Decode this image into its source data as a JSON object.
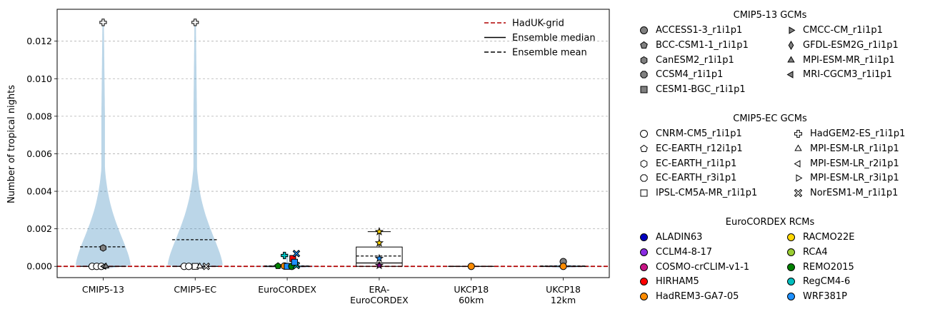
{
  "chart_data": {
    "type": "violin",
    "ylabel": "Number of tropical nights",
    "xlabel": "",
    "ylim": [
      -0.0006,
      0.0137
    ],
    "yticks": [
      0.0,
      0.002,
      0.004,
      0.006,
      0.008,
      0.01,
      0.012
    ],
    "ytick_labels": [
      "0.000",
      "0.002",
      "0.004",
      "0.006",
      "0.008",
      "0.010",
      "0.012"
    ],
    "grid": "y, dashed",
    "categories": [
      {
        "label_lines": [
          "CMIP5-13"
        ],
        "mean": 0.00104,
        "median": 0.0,
        "max": 0.013,
        "violin": true
      },
      {
        "label_lines": [
          "CMIP5-EC"
        ],
        "mean": 0.00142,
        "median": 0.0,
        "max": 0.013,
        "violin": true
      },
      {
        "label_lines": [
          "EuroCORDEX"
        ],
        "mean": 2e-05,
        "median": 0.0,
        "max": 0.0007,
        "violin": true
      },
      {
        "label_lines": [
          "ERA-",
          "EuroCORDEX"
        ],
        "mean": 0.00055,
        "median": 0.00018,
        "max": 0.0018,
        "violin": false,
        "box": {
          "q1": 0.0,
          "q3": 0.00103,
          "whisker_low": 0.0,
          "whisker_high": 0.00185
        }
      },
      {
        "label_lines": [
          "UKCP18",
          "60km"
        ],
        "mean": 0.0,
        "median": 0.0,
        "max": 0.0,
        "violin": true
      },
      {
        "label_lines": [
          "UKCP18",
          "12km"
        ],
        "mean": 2e-05,
        "median": 0.0,
        "max": 0.0003,
        "violin": true
      }
    ],
    "reference_line": {
      "name": "HadUK-grid",
      "value": 0.0,
      "color": "#b00000"
    },
    "points": [
      {
        "cat": 0,
        "dx": -0.12,
        "y": 0.0,
        "marker": "circle",
        "fill": "#ffffff"
      },
      {
        "cat": 0,
        "dx": -0.07,
        "y": 0.0,
        "marker": "circle",
        "fill": "#ffffff"
      },
      {
        "cat": 0,
        "dx": -0.02,
        "y": 0.0,
        "marker": "circle",
        "fill": "#ffffff"
      },
      {
        "cat": 0,
        "dx": 0.01,
        "y": 0.0,
        "marker": "triangle-left",
        "fill": "#808080"
      },
      {
        "cat": 0,
        "dx": 0.03,
        "y": 0.0,
        "marker": "triangle-up",
        "fill": "#808080"
      },
      {
        "cat": 0,
        "dx": 0.0,
        "y": 0.00098,
        "marker": "hexagon",
        "fill": "#808080"
      },
      {
        "cat": 0,
        "dx": 0.0,
        "y": 0.013,
        "marker": "plus",
        "fill": "#ffffff"
      },
      {
        "cat": 1,
        "dx": -0.12,
        "y": 0.0,
        "marker": "circle",
        "fill": "#ffffff"
      },
      {
        "cat": 1,
        "dx": -0.07,
        "y": 0.0,
        "marker": "circle",
        "fill": "#ffffff"
      },
      {
        "cat": 1,
        "dx": 0.0,
        "y": 0.0,
        "marker": "square",
        "fill": "#ffffff"
      },
      {
        "cat": 1,
        "dx": 0.05,
        "y": 0.0,
        "marker": "triangle-up",
        "fill": "#ffffff"
      },
      {
        "cat": 1,
        "dx": 0.12,
        "y": 0.0,
        "marker": "x",
        "fill": "#ffffff"
      },
      {
        "cat": 1,
        "dx": 0.0,
        "y": 0.013,
        "marker": "plus",
        "fill": "#ffffff"
      },
      {
        "cat": 2,
        "dx": -0.1,
        "y": 2e-05,
        "marker": "pentagon",
        "fill": "#008000"
      },
      {
        "cat": 2,
        "dx": -0.03,
        "y": 2e-05,
        "marker": "circle",
        "fill": "#ff8c00"
      },
      {
        "cat": 2,
        "dx": 0.0,
        "y": 0.0,
        "marker": "square",
        "fill": "#1e90ff"
      },
      {
        "cat": 2,
        "dx": 0.05,
        "y": 0.0,
        "marker": "circle",
        "fill": "#008000"
      },
      {
        "cat": 2,
        "dx": 0.1,
        "y": 5e-05,
        "marker": "x",
        "fill": "#00bfbf"
      },
      {
        "cat": 2,
        "dx": -0.03,
        "y": 0.00058,
        "marker": "plus",
        "fill": "#00bfbf"
      },
      {
        "cat": 2,
        "dx": 0.06,
        "y": 0.00042,
        "marker": "square",
        "fill": "#ff0000"
      },
      {
        "cat": 2,
        "dx": 0.1,
        "y": 0.00068,
        "marker": "x",
        "fill": "#1e90ff"
      },
      {
        "cat": 2,
        "dx": 0.08,
        "y": 0.00022,
        "marker": "square",
        "fill": "#1e90ff"
      },
      {
        "cat": 3,
        "dx": 0.0,
        "y": 0.00185,
        "marker": "star",
        "fill": "#ffd700"
      },
      {
        "cat": 3,
        "dx": 0.0,
        "y": 0.00125,
        "marker": "star",
        "fill": "#ffd700"
      },
      {
        "cat": 3,
        "dx": 0.0,
        "y": 0.00042,
        "marker": "star",
        "fill": "#1e90ff"
      },
      {
        "cat": 3,
        "dx": 0.0,
        "y": 5e-05,
        "marker": "star",
        "fill": "#800080"
      },
      {
        "cat": 4,
        "dx": 0.0,
        "y": 0.0,
        "marker": "circle",
        "fill": "#ff8c00"
      },
      {
        "cat": 5,
        "dx": 0.0,
        "y": 0.00025,
        "marker": "circle",
        "fill": "#808080"
      },
      {
        "cat": 5,
        "dx": 0.0,
        "y": 0.0,
        "marker": "circle",
        "fill": "#ff8c00"
      }
    ],
    "inner_legend": [
      {
        "label": "HadUK-grid",
        "style": "dashed",
        "color": "#b00000"
      },
      {
        "label": "Ensemble median",
        "style": "solid",
        "color": "#000000"
      },
      {
        "label": "Ensemble mean",
        "style": "dashed",
        "color": "#000000"
      }
    ],
    "legend_groups": [
      {
        "title": "CMIP5-13 GCMs",
        "columns": [
          [
            {
              "label": "ACCESS1-3_r1i1p1",
              "marker": "circle",
              "fill": "#808080"
            },
            {
              "label": "BCC-CSM1-1_r1i1p1",
              "marker": "pentagon",
              "fill": "#808080"
            },
            {
              "label": "CanESM2_r1i1p1",
              "marker": "hexagon",
              "fill": "#808080"
            },
            {
              "label": "CCSM4_r1i1p1",
              "marker": "octagon",
              "fill": "#808080"
            },
            {
              "label": "CESM1-BGC_r1i1p1",
              "marker": "square",
              "fill": "#808080"
            }
          ],
          [
            {
              "label": "CMCC-CM_r1i1p1",
              "marker": "triangle-right",
              "fill": "#808080"
            },
            {
              "label": "GFDL-ESM2G_r1i1p1",
              "marker": "diamond",
              "fill": "#808080"
            },
            {
              "label": "MPI-ESM-MR_r1i1p1",
              "marker": "triangle-up",
              "fill": "#808080"
            },
            {
              "label": "MRI-CGCM3_r1i1p1",
              "marker": "triangle-left",
              "fill": "#808080"
            }
          ]
        ]
      },
      {
        "title": "CMIP5-EC GCMs",
        "columns": [
          [
            {
              "label": "CNRM-CM5_r1i1p1",
              "marker": "circle",
              "fill": "#ffffff"
            },
            {
              "label": "EC-EARTH_r12i1p1",
              "marker": "pentagon",
              "fill": "#ffffff"
            },
            {
              "label": "EC-EARTH_r1i1p1",
              "marker": "hexagon",
              "fill": "#ffffff"
            },
            {
              "label": "EC-EARTH_r3i1p1",
              "marker": "octagon",
              "fill": "#ffffff"
            },
            {
              "label": "IPSL-CM5A-MR_r1i1p1",
              "marker": "square",
              "fill": "#ffffff"
            }
          ],
          [
            {
              "label": "HadGEM2-ES_r1i1p1",
              "marker": "plus",
              "fill": "#ffffff"
            },
            {
              "label": "MPI-ESM-LR_r1i1p1",
              "marker": "triangle-up",
              "fill": "#ffffff"
            },
            {
              "label": "MPI-ESM-LR_r2i1p1",
              "marker": "triangle-left",
              "fill": "#ffffff"
            },
            {
              "label": "MPI-ESM-LR_r3i1p1",
              "marker": "triangle-right",
              "fill": "#ffffff"
            },
            {
              "label": "NorESM1-M_r1i1p1",
              "marker": "x",
              "fill": "#ffffff"
            }
          ]
        ]
      },
      {
        "title": "EuroCORDEX RCMs",
        "columns": [
          [
            {
              "label": "ALADIN63",
              "marker": "circle",
              "fill": "#0000c0"
            },
            {
              "label": "CCLM4-8-17",
              "marker": "circle",
              "fill": "#8a2be2"
            },
            {
              "label": "COSMO-crCLIM-v1-1",
              "marker": "circle",
              "fill": "#c71585"
            },
            {
              "label": "HIRHAM5",
              "marker": "circle",
              "fill": "#ff0000"
            },
            {
              "label": "HadREM3-GA7-05",
              "marker": "circle",
              "fill": "#ff8c00"
            }
          ],
          [
            {
              "label": "RACMO22E",
              "marker": "circle",
              "fill": "#ffd700"
            },
            {
              "label": "RCA4",
              "marker": "circle",
              "fill": "#9acd32"
            },
            {
              "label": "REMO2015",
              "marker": "circle",
              "fill": "#008000"
            },
            {
              "label": "RegCM4-6",
              "marker": "circle",
              "fill": "#00bfbf"
            },
            {
              "label": "WRF381P",
              "marker": "circle",
              "fill": "#1e90ff"
            }
          ]
        ]
      }
    ]
  }
}
